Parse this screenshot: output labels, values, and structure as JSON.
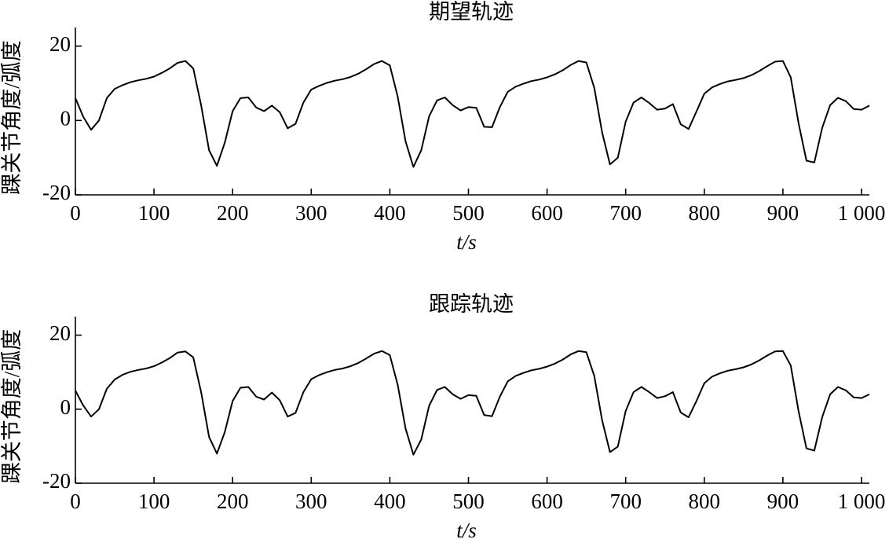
{
  "chart_data": [
    {
      "type": "line",
      "title": "期望轨迹",
      "xlabel": "t/s",
      "ylabel": "踝关节角度/弧度",
      "color": "#000000",
      "xlim": [
        0,
        1010
      ],
      "ylim": [
        -20,
        25
      ],
      "xticks": [
        0,
        100,
        200,
        300,
        400,
        500,
        600,
        700,
        800,
        900,
        {
          "value": 1000,
          "label": "1 000"
        }
      ],
      "yticks": [
        -20,
        0,
        20
      ],
      "x": [
        0,
        10,
        20,
        30,
        40,
        50,
        60,
        70,
        80,
        90,
        100,
        110,
        120,
        130,
        140,
        150,
        160,
        170,
        180,
        190,
        200,
        210,
        220,
        230,
        240,
        250,
        260,
        270,
        280,
        290,
        300,
        310,
        320,
        330,
        340,
        350,
        360,
        370,
        380,
        390,
        400,
        410,
        420,
        430,
        440,
        450,
        460,
        470,
        480,
        490,
        500,
        510,
        520,
        530,
        540,
        550,
        560,
        570,
        580,
        590,
        600,
        610,
        620,
        630,
        640,
        650,
        660,
        670,
        680,
        690,
        700,
        710,
        720,
        730,
        740,
        750,
        760,
        770,
        780,
        790,
        800,
        810,
        820,
        830,
        840,
        850,
        860,
        870,
        880,
        890,
        900,
        910,
        920,
        930,
        940,
        950,
        960,
        970,
        980,
        990,
        1000,
        1010
      ],
      "values": [
        6,
        1,
        -2.5,
        0,
        6,
        8.5,
        9.5,
        10.3,
        10.8,
        11.2,
        11.8,
        12.8,
        14,
        15.5,
        16,
        14,
        4,
        -8,
        -12.2,
        -6,
        2.5,
        6,
        6.2,
        3.5,
        2.5,
        4,
        2.2,
        -2.1,
        -0.9,
        4.8,
        8.3,
        9.3,
        10.1,
        10.7,
        11.1,
        11.7,
        12.6,
        13.8,
        15.2,
        16,
        14.8,
        6.4,
        -5.6,
        -12.5,
        -8,
        1.1,
        5.4,
        6.2,
        4.1,
        2.7,
        3.6,
        3.4,
        -1.7,
        -1.8,
        3.6,
        7.7,
        9.1,
        9.9,
        10.6,
        11,
        11.6,
        12.4,
        13.5,
        14.9,
        16,
        15.6,
        8.8,
        -3.2,
        -11.8,
        -10,
        -0.3,
        4.8,
        6.2,
        4.7,
        2.9,
        3.2,
        4.4,
        -1,
        -2.3,
        2.4,
        7.2,
        8.9,
        9.8,
        10.5,
        10.9,
        11.4,
        12.2,
        13.3,
        14.6,
        15.8,
        16,
        11.6,
        -0.8,
        -10.8,
        -11.3,
        -2,
        4.1,
        6.1,
        5.2,
        3.1,
        2.9,
        4
      ]
    },
    {
      "type": "line",
      "title": "跟踪轨迹",
      "xlabel": "t/s",
      "ylabel": "踝关节角度/弧度",
      "color": "#000000",
      "xlim": [
        0,
        1010
      ],
      "ylim": [
        -20,
        25
      ],
      "xticks": [
        0,
        100,
        200,
        300,
        400,
        500,
        600,
        700,
        800,
        900,
        {
          "value": 1000,
          "label": "1 000"
        }
      ],
      "yticks": [
        -20,
        0,
        20
      ],
      "x": [
        0,
        10,
        20,
        30,
        40,
        50,
        60,
        70,
        80,
        90,
        100,
        110,
        120,
        130,
        140,
        150,
        160,
        170,
        180,
        190,
        200,
        210,
        220,
        230,
        240,
        250,
        260,
        270,
        280,
        290,
        300,
        310,
        320,
        330,
        340,
        350,
        360,
        370,
        380,
        390,
        400,
        410,
        420,
        430,
        440,
        450,
        460,
        470,
        480,
        490,
        500,
        510,
        520,
        530,
        540,
        550,
        560,
        570,
        580,
        590,
        600,
        610,
        620,
        630,
        640,
        650,
        660,
        670,
        680,
        690,
        700,
        710,
        720,
        730,
        740,
        750,
        760,
        770,
        780,
        790,
        800,
        810,
        820,
        830,
        840,
        850,
        860,
        870,
        880,
        890,
        900,
        910,
        920,
        930,
        940,
        950,
        960,
        970,
        980,
        990,
        1000,
        1010
      ],
      "values": [
        5,
        1,
        -2,
        0,
        5.5,
        8,
        9.3,
        10.1,
        10.6,
        11,
        11.6,
        12.6,
        13.8,
        15.3,
        15.6,
        14,
        4.5,
        -7.5,
        -12,
        -6.2,
        2.2,
        5.8,
        6,
        3.4,
        2.6,
        4.5,
        2.4,
        -2,
        -1,
        4.6,
        8.1,
        9.2,
        10,
        10.6,
        11,
        11.6,
        12.5,
        13.7,
        15,
        15.7,
        14.6,
        6.6,
        -5.2,
        -12.3,
        -8.2,
        0.9,
        5.2,
        6,
        4,
        2.8,
        3.8,
        3.6,
        -1.6,
        -1.9,
        3.4,
        7.5,
        9,
        9.8,
        10.5,
        10.9,
        11.5,
        12.3,
        13.4,
        14.8,
        15.7,
        15.4,
        9,
        -3,
        -11.6,
        -10.1,
        -0.5,
        4.6,
        6,
        4.6,
        3,
        3.5,
        4.6,
        -0.9,
        -2.2,
        2.2,
        7,
        8.8,
        9.7,
        10.4,
        10.8,
        11.3,
        12.1,
        13.2,
        14.5,
        15.6,
        15.7,
        11.8,
        -0.6,
        -10.6,
        -11.2,
        -2.2,
        4,
        6,
        5.1,
        3.2,
        3,
        4
      ]
    }
  ]
}
